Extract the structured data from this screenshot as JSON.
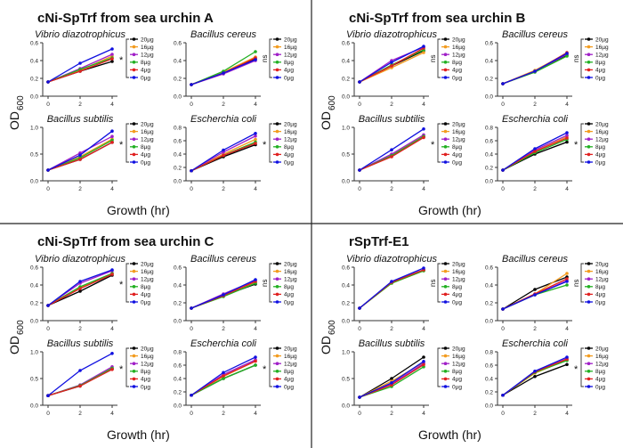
{
  "series_colors": {
    "20µg": "#000000",
    "16µg": "#f39c1f",
    "12µg": "#a020c8",
    "8µg": "#22b022",
    "4µg": "#e02020",
    "0µg": "#1010e0"
  },
  "legend_labels": [
    "20µg",
    "16µg",
    "12µg",
    "8µg",
    "4µg",
    "0µg"
  ],
  "panels": [
    {
      "title": "cNi-SpTrf from sea urchin A",
      "ylabel": "OD",
      "ylabel_sub": "600",
      "xlabel": "Growth (hr)"
    },
    {
      "title": "cNi-SpTrf from sea urchin B",
      "ylabel": "OD",
      "ylabel_sub": "600",
      "xlabel": "Growth (hr)"
    },
    {
      "title": "cNi-SpTrf from sea urchin C",
      "ylabel": "OD",
      "ylabel_sub": "600",
      "xlabel": "Growth (hr)"
    },
    {
      "title": "rSpTrf-E1",
      "ylabel": "OD",
      "ylabel_sub": "600",
      "xlabel": "Growth (hr)"
    }
  ],
  "chart_data": [
    {
      "type": "line",
      "panel": 0,
      "title": "Vibrio diazotrophicus",
      "x": [
        0,
        2,
        4
      ],
      "xticks": [
        "0",
        "2",
        "4"
      ],
      "yticks": [
        "0.0",
        "0.2",
        "0.4",
        "0.6"
      ],
      "ylim": [
        0,
        0.6
      ],
      "significance": "*",
      "series": [
        {
          "name": "20µg",
          "values": [
            0.16,
            0.28,
            0.39
          ]
        },
        {
          "name": "16µg",
          "values": [
            0.16,
            0.29,
            0.45
          ]
        },
        {
          "name": "12µg",
          "values": [
            0.16,
            0.31,
            0.47
          ]
        },
        {
          "name": "8µg",
          "values": [
            0.16,
            0.3,
            0.43
          ]
        },
        {
          "name": "4µg",
          "values": [
            0.16,
            0.28,
            0.42
          ]
        },
        {
          "name": "0µg",
          "values": [
            0.16,
            0.37,
            0.53
          ]
        }
      ]
    },
    {
      "type": "line",
      "panel": 0,
      "title": "Bacillus cereus",
      "x": [
        0,
        2,
        4
      ],
      "xticks": [
        "0",
        "2",
        "4"
      ],
      "yticks": [
        "0.0",
        "0.2",
        "0.4",
        "0.6"
      ],
      "ylim": [
        0,
        0.6
      ],
      "significance": "ns",
      "series": [
        {
          "name": "20µg",
          "values": [
            0.13,
            0.26,
            0.42
          ]
        },
        {
          "name": "16µg",
          "values": [
            0.13,
            0.27,
            0.44
          ]
        },
        {
          "name": "12µg",
          "values": [
            0.13,
            0.25,
            0.4
          ]
        },
        {
          "name": "8µg",
          "values": [
            0.13,
            0.28,
            0.5
          ]
        },
        {
          "name": "4µg",
          "values": [
            0.13,
            0.26,
            0.43
          ]
        },
        {
          "name": "0µg",
          "values": [
            0.13,
            0.26,
            0.41
          ]
        }
      ]
    },
    {
      "type": "line",
      "panel": 0,
      "title": "Bacillus subtilis",
      "x": [
        0,
        2,
        4
      ],
      "xticks": [
        "0",
        "2",
        "4"
      ],
      "yticks": [
        "0.0",
        "0.5",
        "1.0"
      ],
      "ylim": [
        0,
        1.0
      ],
      "significance": "*",
      "series": [
        {
          "name": "20µg",
          "values": [
            0.2,
            0.4,
            0.72
          ]
        },
        {
          "name": "16µg",
          "values": [
            0.2,
            0.45,
            0.78
          ]
        },
        {
          "name": "12µg",
          "values": [
            0.2,
            0.52,
            0.83
          ]
        },
        {
          "name": "8µg",
          "values": [
            0.2,
            0.43,
            0.76
          ]
        },
        {
          "name": "4µg",
          "values": [
            0.2,
            0.4,
            0.72
          ]
        },
        {
          "name": "0µg",
          "values": [
            0.2,
            0.48,
            0.93
          ]
        }
      ]
    },
    {
      "type": "line",
      "panel": 0,
      "title": "Escherchia coli",
      "x": [
        0,
        2,
        4
      ],
      "xticks": [
        "0",
        "2",
        "4"
      ],
      "yticks": [
        "0.0",
        "0.2",
        "0.4",
        "0.6",
        "0.8"
      ],
      "ylim": [
        0,
        0.8
      ],
      "significance": "*",
      "series": [
        {
          "name": "20µg",
          "values": [
            0.15,
            0.36,
            0.54
          ]
        },
        {
          "name": "16µg",
          "values": [
            0.15,
            0.4,
            0.62
          ]
        },
        {
          "name": "12µg",
          "values": [
            0.15,
            0.43,
            0.67
          ]
        },
        {
          "name": "8µg",
          "values": [
            0.15,
            0.38,
            0.58
          ]
        },
        {
          "name": "4µg",
          "values": [
            0.15,
            0.38,
            0.56
          ]
        },
        {
          "name": "0µg",
          "values": [
            0.15,
            0.46,
            0.71
          ]
        }
      ]
    },
    {
      "type": "line",
      "panel": 1,
      "title": "Vibrio diazotrophicus",
      "x": [
        0,
        2,
        4
      ],
      "xticks": [
        "0",
        "2",
        "4"
      ],
      "yticks": [
        "0.0",
        "0.2",
        "0.4",
        "0.6"
      ],
      "ylim": [
        0,
        0.6
      ],
      "significance": "ns",
      "series": [
        {
          "name": "20µg",
          "values": [
            0.16,
            0.34,
            0.51
          ]
        },
        {
          "name": "16µg",
          "values": [
            0.16,
            0.32,
            0.49
          ]
        },
        {
          "name": "12µg",
          "values": [
            0.16,
            0.4,
            0.55
          ]
        },
        {
          "name": "8µg",
          "values": [
            0.16,
            0.35,
            0.52
          ]
        },
        {
          "name": "4µg",
          "values": [
            0.16,
            0.34,
            0.54
          ]
        },
        {
          "name": "0µg",
          "values": [
            0.16,
            0.38,
            0.56
          ]
        }
      ]
    },
    {
      "type": "line",
      "panel": 1,
      "title": "Bacillus cereus",
      "x": [
        0,
        2,
        4
      ],
      "xticks": [
        "0",
        "2",
        "4"
      ],
      "yticks": [
        "0.0",
        "0.2",
        "0.4",
        "0.6"
      ],
      "ylim": [
        0,
        0.6
      ],
      "significance": "ns",
      "series": [
        {
          "name": "20µg",
          "values": [
            0.14,
            0.28,
            0.46
          ]
        },
        {
          "name": "16µg",
          "values": [
            0.14,
            0.29,
            0.48
          ]
        },
        {
          "name": "12µg",
          "values": [
            0.14,
            0.28,
            0.47
          ]
        },
        {
          "name": "8µg",
          "values": [
            0.14,
            0.27,
            0.45
          ]
        },
        {
          "name": "4µg",
          "values": [
            0.14,
            0.28,
            0.49
          ]
        },
        {
          "name": "0µg",
          "values": [
            0.14,
            0.28,
            0.48
          ]
        }
      ]
    },
    {
      "type": "line",
      "panel": 1,
      "title": "Bacillus subtilis",
      "x": [
        0,
        2,
        4
      ],
      "xticks": [
        "0",
        "2",
        "4"
      ],
      "yticks": [
        "0.0",
        "0.5",
        "1.0"
      ],
      "ylim": [
        0,
        1.0
      ],
      "significance": "*",
      "series": [
        {
          "name": "20µg",
          "values": [
            0.2,
            0.46,
            0.82
          ]
        },
        {
          "name": "16µg",
          "values": [
            0.2,
            0.48,
            0.84
          ]
        },
        {
          "name": "12µg",
          "values": [
            0.2,
            0.5,
            0.86
          ]
        },
        {
          "name": "8µg",
          "values": [
            0.2,
            0.47,
            0.83
          ]
        },
        {
          "name": "4µg",
          "values": [
            0.2,
            0.45,
            0.81
          ]
        },
        {
          "name": "0µg",
          "values": [
            0.2,
            0.58,
            0.97
          ]
        }
      ]
    },
    {
      "type": "line",
      "panel": 1,
      "title": "Escherchia coli",
      "x": [
        0,
        2,
        4
      ],
      "xticks": [
        "0",
        "2",
        "4"
      ],
      "yticks": [
        "0.0",
        "0.2",
        "0.4",
        "0.6",
        "0.8"
      ],
      "ylim": [
        0,
        0.8
      ],
      "significance": "*",
      "series": [
        {
          "name": "20µg",
          "values": [
            0.16,
            0.4,
            0.58
          ]
        },
        {
          "name": "16µg",
          "values": [
            0.16,
            0.44,
            0.66
          ]
        },
        {
          "name": "12µg",
          "values": [
            0.16,
            0.46,
            0.68
          ]
        },
        {
          "name": "8µg",
          "values": [
            0.16,
            0.42,
            0.62
          ]
        },
        {
          "name": "4µg",
          "values": [
            0.16,
            0.44,
            0.64
          ]
        },
        {
          "name": "0µg",
          "values": [
            0.16,
            0.48,
            0.72
          ]
        }
      ]
    },
    {
      "type": "line",
      "panel": 2,
      "title": "Vibrio diazotrophicus",
      "x": [
        0,
        2,
        4
      ],
      "xticks": [
        "0",
        "2",
        "4"
      ],
      "yticks": [
        "0.0",
        "0.2",
        "0.4",
        "0.6"
      ],
      "ylim": [
        0,
        0.6
      ],
      "significance": "*",
      "series": [
        {
          "name": "20µg",
          "values": [
            0.17,
            0.33,
            0.51
          ]
        },
        {
          "name": "16µg",
          "values": [
            0.17,
            0.37,
            0.53
          ]
        },
        {
          "name": "12µg",
          "values": [
            0.17,
            0.42,
            0.56
          ]
        },
        {
          "name": "8µg",
          "values": [
            0.17,
            0.38,
            0.53
          ]
        },
        {
          "name": "4µg",
          "values": [
            0.17,
            0.36,
            0.52
          ]
        },
        {
          "name": "0µg",
          "values": [
            0.17,
            0.44,
            0.57
          ]
        }
      ]
    },
    {
      "type": "line",
      "panel": 2,
      "title": "Bacillus cereus",
      "x": [
        0,
        2,
        4
      ],
      "xticks": [
        "0",
        "2",
        "4"
      ],
      "yticks": [
        "0.0",
        "0.2",
        "0.4",
        "0.6"
      ],
      "ylim": [
        0,
        0.6
      ],
      "significance": "ns",
      "series": [
        {
          "name": "20µg",
          "values": [
            0.14,
            0.28,
            0.41
          ]
        },
        {
          "name": "16µg",
          "values": [
            0.14,
            0.29,
            0.43
          ]
        },
        {
          "name": "12µg",
          "values": [
            0.14,
            0.3,
            0.45
          ]
        },
        {
          "name": "8µg",
          "values": [
            0.14,
            0.27,
            0.42
          ]
        },
        {
          "name": "4µg",
          "values": [
            0.14,
            0.28,
            0.44
          ]
        },
        {
          "name": "0µg",
          "values": [
            0.14,
            0.29,
            0.46
          ]
        }
      ]
    },
    {
      "type": "line",
      "panel": 2,
      "title": "Bacillus subtilis",
      "x": [
        0,
        2,
        4
      ],
      "xticks": [
        "0",
        "2",
        "4"
      ],
      "yticks": [
        "0.0",
        "0.5",
        "1.0"
      ],
      "ylim": [
        0,
        1.0
      ],
      "significance": "*",
      "series": [
        {
          "name": "20µg",
          "values": [
            0.18,
            0.36,
            0.68
          ]
        },
        {
          "name": "16µg",
          "values": [
            0.18,
            0.37,
            0.7
          ]
        },
        {
          "name": "12µg",
          "values": [
            0.18,
            0.38,
            0.72
          ]
        },
        {
          "name": "8µg",
          "values": [
            0.18,
            0.37,
            0.69
          ]
        },
        {
          "name": "4µg",
          "values": [
            0.18,
            0.36,
            0.67
          ]
        },
        {
          "name": "0µg",
          "values": [
            0.18,
            0.65,
            0.97
          ]
        }
      ]
    },
    {
      "type": "line",
      "panel": 2,
      "title": "Escherchia coli",
      "x": [
        0,
        2,
        4
      ],
      "xticks": [
        "0",
        "2",
        "4"
      ],
      "yticks": [
        "0.0",
        "0.2",
        "0.4",
        "0.6",
        "0.8"
      ],
      "ylim": [
        0,
        0.8
      ],
      "significance": "*",
      "series": [
        {
          "name": "20µg",
          "values": [
            0.15,
            0.4,
            0.6
          ]
        },
        {
          "name": "16µg",
          "values": [
            0.15,
            0.43,
            0.66
          ]
        },
        {
          "name": "12µg",
          "values": [
            0.15,
            0.46,
            0.68
          ]
        },
        {
          "name": "8µg",
          "values": [
            0.15,
            0.4,
            0.6
          ]
        },
        {
          "name": "4µg",
          "values": [
            0.15,
            0.44,
            0.66
          ]
        },
        {
          "name": "0µg",
          "values": [
            0.15,
            0.49,
            0.72
          ]
        }
      ]
    },
    {
      "type": "line",
      "panel": 3,
      "title": "Vibrio diazotrophicus",
      "x": [
        0,
        2,
        4
      ],
      "xticks": [
        "0",
        "2",
        "4"
      ],
      "yticks": [
        "0.0",
        "0.2",
        "0.4",
        "0.6"
      ],
      "ylim": [
        0,
        0.6
      ],
      "significance": "ns",
      "series": [
        {
          "name": "20µg",
          "values": [
            0.14,
            0.43,
            0.57
          ]
        },
        {
          "name": "16µg",
          "values": [
            0.14,
            0.42,
            0.56
          ]
        },
        {
          "name": "12µg",
          "values": [
            0.14,
            0.43,
            0.57
          ]
        },
        {
          "name": "8µg",
          "values": [
            0.14,
            0.42,
            0.56
          ]
        },
        {
          "name": "4µg",
          "values": [
            0.14,
            0.43,
            0.57
          ]
        },
        {
          "name": "0µg",
          "values": [
            0.14,
            0.44,
            0.59
          ]
        }
      ]
    },
    {
      "type": "line",
      "panel": 3,
      "title": "Bacillus cereus",
      "x": [
        0,
        2,
        4
      ],
      "xticks": [
        "0",
        "2",
        "4"
      ],
      "yticks": [
        "0.0",
        "0.2",
        "0.4",
        "0.6"
      ],
      "ylim": [
        0,
        0.6
      ],
      "significance": "ns",
      "series": [
        {
          "name": "20µg",
          "values": [
            0.13,
            0.35,
            0.49
          ]
        },
        {
          "name": "16µg",
          "values": [
            0.13,
            0.3,
            0.53
          ]
        },
        {
          "name": "12µg",
          "values": [
            0.13,
            0.29,
            0.45
          ]
        },
        {
          "name": "8µg",
          "values": [
            0.13,
            0.29,
            0.4
          ]
        },
        {
          "name": "4µg",
          "values": [
            0.13,
            0.3,
            0.47
          ]
        },
        {
          "name": "0µg",
          "values": [
            0.13,
            0.29,
            0.44
          ]
        }
      ]
    },
    {
      "type": "line",
      "panel": 3,
      "title": "Bacillus subtilis",
      "x": [
        0,
        2,
        4
      ],
      "xticks": [
        "0",
        "2",
        "4"
      ],
      "yticks": [
        "0.0",
        "0.5",
        "1.0"
      ],
      "ylim": [
        0,
        1.0
      ],
      "significance": "",
      "series": [
        {
          "name": "20µg",
          "values": [
            0.15,
            0.5,
            0.9
          ]
        },
        {
          "name": "16µg",
          "values": [
            0.15,
            0.45,
            0.8
          ]
        },
        {
          "name": "12µg",
          "values": [
            0.15,
            0.4,
            0.78
          ]
        },
        {
          "name": "8µg",
          "values": [
            0.15,
            0.35,
            0.72
          ]
        },
        {
          "name": "4µg",
          "values": [
            0.15,
            0.38,
            0.76
          ]
        },
        {
          "name": "0µg",
          "values": [
            0.15,
            0.42,
            0.82
          ]
        }
      ]
    },
    {
      "type": "line",
      "panel": 3,
      "title": "Escherchia coli",
      "x": [
        0,
        2,
        4
      ],
      "xticks": [
        "0",
        "2",
        "4"
      ],
      "yticks": [
        "0.0",
        "0.2",
        "0.4",
        "0.6",
        "0.8"
      ],
      "ylim": [
        0,
        0.8
      ],
      "significance": "*",
      "series": [
        {
          "name": "20µg",
          "values": [
            0.15,
            0.43,
            0.61
          ]
        },
        {
          "name": "16µg",
          "values": [
            0.15,
            0.48,
            0.68
          ]
        },
        {
          "name": "12µg",
          "values": [
            0.15,
            0.5,
            0.7
          ]
        },
        {
          "name": "8µg",
          "values": [
            0.15,
            0.49,
            0.67
          ]
        },
        {
          "name": "4µg",
          "values": [
            0.15,
            0.5,
            0.69
          ]
        },
        {
          "name": "0µg",
          "values": [
            0.15,
            0.51,
            0.72
          ]
        }
      ]
    }
  ]
}
